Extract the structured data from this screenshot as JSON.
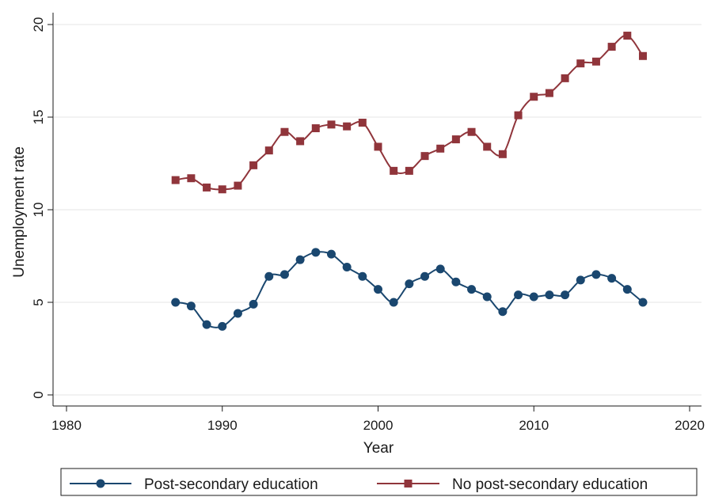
{
  "chart_data": {
    "type": "line",
    "title": "",
    "xlabel": "Year",
    "ylabel": "Unemployment rate",
    "xlim": [
      1980,
      2020
    ],
    "ylim": [
      0,
      20
    ],
    "x_ticks": [
      1980,
      1990,
      2000,
      2010,
      2020
    ],
    "y_ticks": [
      0,
      5,
      10,
      15,
      20
    ],
    "grid": "horizontal",
    "legend_position": "bottom",
    "x": [
      1987,
      1988,
      1989,
      1990,
      1991,
      1992,
      1993,
      1994,
      1995,
      1996,
      1997,
      1998,
      1999,
      2000,
      2001,
      2002,
      2003,
      2004,
      2005,
      2006,
      2007,
      2008,
      2009,
      2010,
      2011,
      2012,
      2013,
      2014,
      2015,
      2016,
      2017
    ],
    "series": [
      {
        "name": "Post-secondary education",
        "color": "#1a476f",
        "marker": "circle",
        "values": [
          5.0,
          4.8,
          3.8,
          3.7,
          4.4,
          4.9,
          6.4,
          6.5,
          7.3,
          7.7,
          7.6,
          6.9,
          6.4,
          5.7,
          5.0,
          6.0,
          6.4,
          6.8,
          6.1,
          5.7,
          5.3,
          4.5,
          5.4,
          5.3,
          5.4,
          5.4,
          6.2,
          6.5,
          6.3,
          5.7,
          5.0
        ]
      },
      {
        "name": "No post-secondary education",
        "color": "#90353b",
        "marker": "square",
        "values": [
          11.6,
          11.7,
          11.2,
          11.1,
          11.3,
          12.4,
          13.2,
          14.2,
          13.7,
          14.4,
          14.6,
          14.5,
          14.7,
          13.4,
          12.1,
          12.1,
          12.9,
          13.3,
          13.8,
          14.2,
          13.4,
          13.0,
          15.1,
          16.1,
          16.3,
          17.1,
          17.9,
          18.0,
          18.8,
          19.4,
          18.3
        ]
      }
    ]
  }
}
